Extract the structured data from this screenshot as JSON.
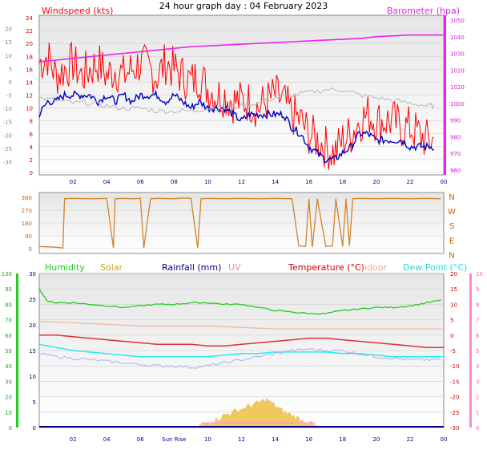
{
  "title": "24 hour graph day : 04 February 2023",
  "colors": {
    "wind": "#ff0000",
    "gust": "#0000c8",
    "baro": "#ee22ee",
    "windTemp": "#b8b8b8",
    "dir": "#d2832a",
    "humidity": "#22cc22",
    "solar": "#f0c040",
    "rain": "#000080",
    "uv": "#ff99dd",
    "temp": "#e03030",
    "indoor": "#f2b8a0",
    "dew": "#22eeee",
    "apparent": "#aab0ee"
  },
  "x_ticks": [
    "02",
    "04",
    "06",
    "08",
    "10",
    "12",
    "14",
    "16",
    "18",
    "20",
    "22",
    "00"
  ],
  "sunrise_label": "Sun Rise",
  "chart_data": [
    {
      "type": "line",
      "labels": {
        "left": "Windspeed (kts)",
        "right": "Barometer (hpa)"
      },
      "x_range": [
        0,
        24
      ],
      "y_left_ticks": [
        "24",
        "22",
        "20",
        "18",
        "16",
        "14",
        "12",
        "10",
        "8",
        "6",
        "4",
        "2",
        "0"
      ],
      "y_left_range": [
        0,
        24
      ],
      "y_far_left_ticks": [
        "20",
        "15",
        "10",
        "5",
        "0",
        "-5",
        "-10",
        "-15",
        "-20",
        "-25",
        "-30"
      ],
      "y_far_left_range": [
        -35,
        25
      ],
      "y_right_ticks": [
        "1050",
        "1040",
        "1030",
        "1020",
        "1010",
        "1000",
        "990",
        "980",
        "970",
        "960"
      ],
      "y_right_range": [
        960,
        1050
      ],
      "series": [
        {
          "key": "wind",
          "axis": "left",
          "x": [
            0,
            0.5,
            1,
            1.5,
            2,
            2.5,
            3,
            3.5,
            4,
            4.5,
            5,
            5.5,
            6,
            6.5,
            7,
            7.5,
            8,
            8.5,
            9,
            9.5,
            10,
            10.5,
            11,
            11.5,
            12,
            12.5,
            13,
            13.5,
            14,
            14.5,
            15,
            15.5,
            16,
            16.5,
            17,
            17.5,
            18,
            18.5,
            19,
            19.5,
            20,
            20.5,
            21,
            21.5,
            22,
            22.5,
            23,
            23.5
          ],
          "y": [
            17,
            18,
            15,
            16,
            17,
            15,
            16,
            17,
            15,
            16,
            15,
            16,
            17,
            16,
            15,
            17,
            16,
            15,
            14,
            15,
            13,
            12,
            12,
            11,
            11,
            11,
            10,
            11,
            12,
            11,
            9,
            8,
            6,
            5,
            4,
            3,
            5,
            6,
            8,
            9,
            8,
            8,
            8,
            7,
            7,
            6,
            5,
            5
          ]
        },
        {
          "key": "gust",
          "axis": "left",
          "x": [
            0,
            0.5,
            1,
            1.5,
            2,
            2.5,
            3,
            3.5,
            4,
            4.5,
            5,
            5.5,
            6,
            6.5,
            7,
            7.5,
            8,
            8.5,
            9,
            9.5,
            10,
            10.5,
            11,
            11.5,
            12,
            12.5,
            13,
            13.5,
            14,
            14.5,
            15,
            15.5,
            16,
            16.5,
            17,
            17.5,
            18,
            18.5,
            19,
            19.5,
            20,
            20.5,
            21,
            21.5,
            22,
            22.5,
            23,
            23.5
          ],
          "y": [
            9,
            11,
            11,
            12,
            12,
            12,
            12,
            11,
            12,
            11,
            12,
            11,
            12,
            12,
            12,
            11,
            12,
            11,
            10,
            11,
            10,
            10,
            10,
            9,
            8,
            9,
            9,
            9,
            9,
            9,
            7,
            6,
            4,
            3,
            2,
            2,
            3,
            4,
            6,
            6,
            5,
            5,
            5,
            5,
            4,
            4,
            4,
            4
          ]
        },
        {
          "key": "windTemp",
          "axis": "far_left",
          "x": [
            0,
            1,
            2,
            3,
            4,
            5,
            6,
            7,
            8,
            9,
            10,
            11,
            12,
            13,
            14,
            15,
            16,
            17,
            18,
            19,
            20,
            21,
            22,
            23,
            23.5
          ],
          "y": [
            -6,
            -7,
            -8,
            -8,
            -9,
            -10,
            -10,
            -11,
            -11,
            -11,
            -10,
            -10,
            -9,
            -8,
            -6,
            -5,
            -4,
            -3,
            -3,
            -5,
            -6,
            -7,
            -8,
            -9,
            -9
          ]
        },
        {
          "key": "baro",
          "axis": "right",
          "x": [
            0,
            1,
            2,
            3,
            4,
            5,
            6,
            7,
            8,
            9,
            10,
            11,
            12,
            13,
            14,
            15,
            16,
            17,
            18,
            19,
            20,
            21,
            22,
            23,
            24
          ],
          "y": [
            1025,
            1026,
            1027,
            1028,
            1029,
            1030,
            1031,
            1032,
            1033,
            1034,
            1034.5,
            1035,
            1035.5,
            1036,
            1036.5,
            1037,
            1037.5,
            1038,
            1038.5,
            1039,
            1040,
            1040.5,
            1041,
            1041,
            1041
          ]
        }
      ]
    },
    {
      "type": "line",
      "labels": {
        "right": [
          "N",
          "W",
          "S",
          "E",
          "N"
        ]
      },
      "x_range": [
        0,
        24
      ],
      "y_left_ticks": [
        "360",
        "270",
        "180",
        "90",
        "0"
      ],
      "y_range": [
        0,
        360
      ],
      "series": [
        {
          "key": "dir",
          "x": [
            0,
            1,
            1.4,
            1.5,
            2,
            3,
            4,
            4.4,
            4.5,
            5,
            5.5,
            6,
            6.2,
            6.6,
            7,
            8,
            8.5,
            9,
            9.4,
            9.6,
            10,
            11,
            12,
            13,
            14,
            15,
            15.4,
            15.8,
            16,
            16.2,
            16.5,
            17,
            17.4,
            17.6,
            18,
            18.2,
            18.4,
            18.6,
            19,
            20,
            21,
            22,
            23,
            23.8
          ],
          "y": [
            15,
            10,
            5,
            350,
            352,
            350,
            352,
            5,
            350,
            352,
            350,
            352,
            5,
            350,
            352,
            350,
            355,
            352,
            5,
            350,
            352,
            350,
            352,
            350,
            352,
            350,
            20,
            15,
            350,
            10,
            350,
            15,
            20,
            350,
            15,
            350,
            20,
            350,
            352,
            350,
            352,
            350,
            352,
            350
          ]
        }
      ]
    },
    {
      "type": "line",
      "labels": {
        "humidity": "Humidity",
        "solar": "Solar",
        "rain": "Rainfall (mm)",
        "uv": "UV",
        "temp": "Temperature (°C)",
        "indoor": "Indoor",
        "dew": "Dew Point (°C)"
      },
      "x_range": [
        0,
        24
      ],
      "y_humidity_ticks": [
        "100",
        "90",
        "80",
        "70",
        "60",
        "50",
        "40",
        "30",
        "20",
        "10",
        "0"
      ],
      "y_humidity_range": [
        0,
        100
      ],
      "y_rain_ticks": [
        "30",
        "25",
        "20",
        "15",
        "10",
        "5",
        "0"
      ],
      "y_rain_range": [
        0,
        30
      ],
      "y_temp_ticks": [
        "20",
        "15",
        "10",
        "5",
        "0",
        "-5",
        "-10",
        "-15",
        "-20",
        "-25",
        "-30"
      ],
      "y_temp_range": [
        -30,
        20
      ],
      "y_uv_ticks": [
        "10",
        "9",
        "8",
        "7",
        "6",
        "5",
        "4",
        "3",
        "2",
        "1",
        "0"
      ],
      "y_uv_range": [
        0,
        10
      ],
      "series": [
        {
          "key": "humidity",
          "axis": "humidity",
          "x": [
            0,
            0.5,
            1,
            2,
            3,
            4,
            5,
            6,
            7,
            8,
            9,
            10,
            11,
            12,
            13,
            14,
            15,
            16,
            17,
            18,
            19,
            20,
            21,
            22,
            23,
            24
          ],
          "y": [
            90,
            82,
            81,
            81,
            80,
            79,
            78,
            79,
            80,
            80,
            81,
            81,
            80,
            80,
            78,
            76,
            75,
            74,
            74,
            76,
            77,
            78,
            78,
            79,
            81,
            83
          ]
        },
        {
          "key": "indoor",
          "axis": "temp",
          "x": [
            0,
            2,
            4,
            6,
            8,
            10,
            12,
            14,
            16,
            18,
            20,
            22,
            24
          ],
          "y": [
            4.5,
            4,
            3.5,
            3,
            3,
            3,
            2.5,
            2,
            2,
            2,
            2,
            2,
            2
          ]
        },
        {
          "key": "temp",
          "axis": "temp",
          "x": [
            0,
            1,
            2,
            3,
            4,
            5,
            6,
            7,
            8,
            9,
            10,
            11,
            12,
            13,
            14,
            15,
            16,
            17,
            18,
            19,
            20,
            21,
            22,
            23,
            24
          ],
          "y": [
            0,
            0,
            -0.5,
            -1,
            -1.5,
            -2,
            -2.5,
            -3,
            -3,
            -3,
            -3.5,
            -3.5,
            -3,
            -2.5,
            -2,
            -1.5,
            -1,
            -1,
            -1.5,
            -2,
            -2.5,
            -3,
            -3.5,
            -4,
            -4
          ]
        },
        {
          "key": "dew",
          "axis": "temp",
          "x": [
            0,
            1,
            2,
            3,
            4,
            5,
            6,
            7,
            8,
            9,
            10,
            11,
            12,
            13,
            14,
            15,
            16,
            17,
            18,
            19,
            20,
            21,
            22,
            23,
            24
          ],
          "y": [
            -3,
            -4,
            -5,
            -5.5,
            -6,
            -6.5,
            -7,
            -7,
            -7,
            -7,
            -7,
            -6.5,
            -6,
            -6,
            -5.5,
            -5.5,
            -5.5,
            -5.5,
            -6,
            -6,
            -6.5,
            -7,
            -7,
            -7,
            -7
          ]
        },
        {
          "key": "apparent",
          "axis": "temp",
          "x": [
            0,
            1,
            2,
            3,
            4,
            5,
            6,
            7,
            8,
            9,
            10,
            11,
            12,
            13,
            14,
            15,
            16,
            17,
            18,
            19,
            20,
            21,
            22,
            23,
            24
          ],
          "y": [
            -6,
            -7,
            -7.5,
            -8,
            -8.5,
            -9,
            -9.5,
            -10,
            -10,
            -10.5,
            -10,
            -9,
            -8,
            -7,
            -6,
            -5,
            -4.5,
            -5,
            -5,
            -6,
            -7,
            -7.5,
            -8,
            -8,
            -8
          ]
        },
        {
          "key": "solar",
          "axis": "humidity",
          "x": [
            9.5,
            10,
            10.5,
            11,
            11.5,
            12,
            12.5,
            13,
            13.5,
            14,
            14.5,
            15,
            15.5,
            16,
            16.5
          ],
          "y": [
            1,
            3,
            5,
            8,
            10,
            12,
            14,
            16,
            18,
            14,
            10,
            8,
            5,
            3,
            0
          ]
        }
      ]
    }
  ]
}
